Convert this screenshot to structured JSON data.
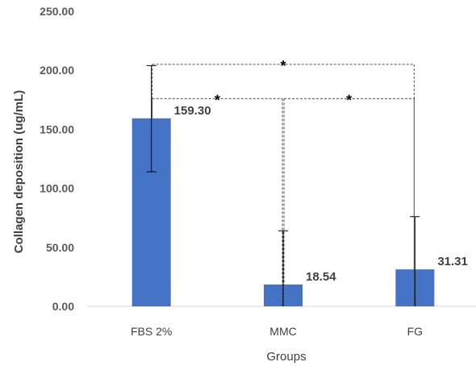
{
  "chart_data": {
    "type": "bar",
    "title": "",
    "xlabel": "Groups",
    "ylabel": "Collagen deposition (ug/mL)",
    "categories": [
      "FBS 2%",
      "MMC",
      "FG"
    ],
    "values": [
      159.3,
      18.54,
      31.31
    ],
    "data_labels": [
      "159.30",
      "18.54",
      "31.31"
    ],
    "error_bars": {
      "upper": [
        204,
        64,
        76
      ],
      "lower": [
        114,
        0,
        0
      ]
    },
    "ylim": [
      0,
      250
    ],
    "y_ticks": [
      0,
      50,
      100,
      150,
      200,
      250
    ],
    "y_tick_labels": [
      "0.00",
      "50.00",
      "100.00",
      "150.00",
      "200.00",
      "250.00"
    ],
    "grid": false,
    "legend": "none",
    "bar_color": "#4472C4",
    "significance": [
      {
        "from": "FBS 2%",
        "to": "FG",
        "level": 205,
        "marker": "*"
      },
      {
        "from": "FBS 2%",
        "to": "MMC",
        "level": 176,
        "marker": "*"
      },
      {
        "from": "MMC",
        "to": "FG",
        "level": 176,
        "marker": "*"
      }
    ]
  }
}
